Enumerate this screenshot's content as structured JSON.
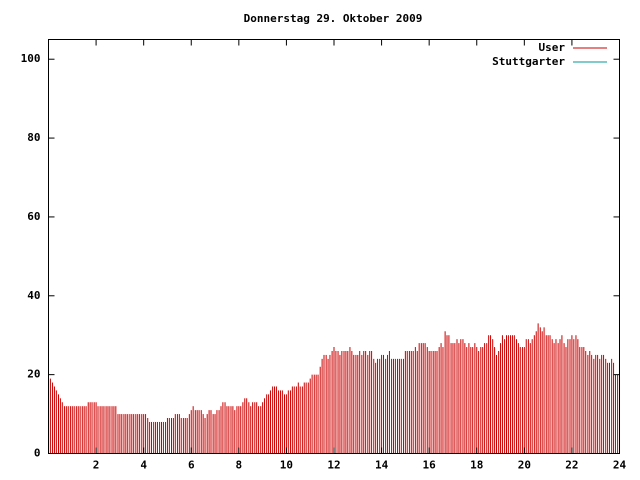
{
  "chart_data": {
    "type": "impulse",
    "title": "Donnerstag 29. Oktober 2009",
    "xlim": [
      0,
      24
    ],
    "xticks": [
      2,
      4,
      6,
      8,
      10,
      12,
      14,
      16,
      18,
      20,
      22,
      24
    ],
    "ylim": [
      0,
      105
    ],
    "yticks": [
      0,
      20,
      40,
      60,
      80,
      100
    ],
    "grid": false,
    "legend": "top-right",
    "x": [
      0,
      0.08,
      0.17,
      0.25,
      0.33,
      0.42,
      0.5,
      0.58,
      0.67,
      0.75,
      0.83,
      0.92,
      1,
      1.08,
      1.17,
      1.25,
      1.33,
      1.42,
      1.5,
      1.58,
      1.67,
      1.75,
      1.83,
      1.92,
      2,
      2.08,
      2.17,
      2.25,
      2.33,
      2.42,
      2.5,
      2.58,
      2.67,
      2.75,
      2.83,
      2.92,
      3,
      3.08,
      3.17,
      3.25,
      3.33,
      3.42,
      3.5,
      3.58,
      3.67,
      3.75,
      3.83,
      3.92,
      4,
      4.08,
      4.17,
      4.25,
      4.33,
      4.42,
      4.5,
      4.58,
      4.67,
      4.75,
      4.83,
      4.92,
      5,
      5.08,
      5.17,
      5.25,
      5.33,
      5.42,
      5.5,
      5.58,
      5.67,
      5.75,
      5.83,
      5.92,
      6,
      6.08,
      6.17,
      6.25,
      6.33,
      6.42,
      6.5,
      6.58,
      6.67,
      6.75,
      6.83,
      6.92,
      7,
      7.08,
      7.17,
      7.25,
      7.33,
      7.42,
      7.5,
      7.58,
      7.67,
      7.75,
      7.83,
      7.92,
      8,
      8.08,
      8.17,
      8.25,
      8.33,
      8.42,
      8.5,
      8.58,
      8.67,
      8.75,
      8.83,
      8.92,
      9,
      9.08,
      9.17,
      9.25,
      9.33,
      9.42,
      9.5,
      9.58,
      9.67,
      9.75,
      9.83,
      9.92,
      10,
      10.08,
      10.17,
      10.25,
      10.33,
      10.42,
      10.5,
      10.58,
      10.67,
      10.75,
      10.83,
      10.92,
      11,
      11.08,
      11.17,
      11.25,
      11.33,
      11.42,
      11.5,
      11.58,
      11.67,
      11.75,
      11.83,
      11.92,
      12,
      12.08,
      12.17,
      12.25,
      12.33,
      12.42,
      12.5,
      12.58,
      12.67,
      12.75,
      12.83,
      12.92,
      13,
      13.08,
      13.17,
      13.25,
      13.33,
      13.42,
      13.5,
      13.58,
      13.67,
      13.75,
      13.83,
      13.92,
      14,
      14.08,
      14.17,
      14.25,
      14.33,
      14.42,
      14.5,
      14.58,
      14.67,
      14.75,
      14.83,
      14.92,
      15,
      15.08,
      15.17,
      15.25,
      15.33,
      15.42,
      15.5,
      15.58,
      15.67,
      15.75,
      15.83,
      15.92,
      16,
      16.08,
      16.17,
      16.25,
      16.33,
      16.42,
      16.5,
      16.58,
      16.67,
      16.75,
      16.83,
      16.92,
      17,
      17.08,
      17.17,
      17.25,
      17.33,
      17.42,
      17.5,
      17.58,
      17.67,
      17.75,
      17.83,
      17.92,
      18,
      18.08,
      18.17,
      18.25,
      18.33,
      18.42,
      18.5,
      18.58,
      18.67,
      18.75,
      18.83,
      18.92,
      19,
      19.08,
      19.17,
      19.25,
      19.33,
      19.42,
      19.5,
      19.58,
      19.67,
      19.75,
      19.83,
      19.92,
      20,
      20.08,
      20.17,
      20.25,
      20.33,
      20.42,
      20.5,
      20.58,
      20.67,
      20.75,
      20.83,
      20.92,
      21,
      21.08,
      21.17,
      21.25,
      21.33,
      21.42,
      21.5,
      21.58,
      21.67,
      21.75,
      21.83,
      21.92,
      22,
      22.08,
      22.17,
      22.25,
      22.33,
      22.42,
      22.5,
      22.58,
      22.67,
      22.75,
      22.83,
      22.92,
      23,
      23.08,
      23.17,
      23.25,
      23.33,
      23.42,
      23.5,
      23.58,
      23.67,
      23.75,
      23.83,
      23.92
    ],
    "series": [
      {
        "name": "User",
        "color": "#cc0000",
        "values": [
          21,
          19,
          18,
          17,
          16,
          15,
          14,
          13,
          12,
          12,
          12,
          12,
          12,
          12,
          12,
          12,
          12,
          12,
          12,
          12,
          13,
          13,
          13,
          13,
          13,
          12,
          12,
          12,
          12,
          12,
          12,
          12,
          12,
          12,
          12,
          10,
          10,
          10,
          10,
          10,
          10,
          10,
          10,
          10,
          10,
          10,
          10,
          10,
          10,
          10,
          9,
          8,
          8,
          8,
          8,
          8,
          8,
          8,
          8,
          8,
          9,
          9,
          9,
          9,
          10,
          10,
          10,
          9,
          9,
          9,
          9,
          10,
          11,
          12,
          11,
          11,
          11,
          11,
          10,
          9,
          10,
          11,
          11,
          10,
          10,
          11,
          11,
          12,
          13,
          13,
          12,
          12,
          12,
          12,
          11,
          12,
          12,
          12,
          13,
          14,
          14,
          13,
          12,
          13,
          13,
          13,
          12,
          12,
          13,
          14,
          15,
          15,
          16,
          17,
          17,
          17,
          16,
          16,
          16,
          15,
          15,
          16,
          16,
          17,
          17,
          17,
          18,
          17,
          17,
          18,
          18,
          18,
          19,
          20,
          20,
          20,
          20,
          22,
          24,
          25,
          25,
          24,
          25,
          26,
          27,
          26,
          26,
          25,
          26,
          26,
          26,
          26,
          27,
          26,
          25,
          25,
          25,
          26,
          25,
          26,
          26,
          25,
          26,
          26,
          24,
          23,
          24,
          24,
          25,
          25,
          24,
          25,
          26,
          24,
          24,
          24,
          24,
          24,
          24,
          24,
          26,
          26,
          26,
          26,
          26,
          27,
          26,
          28,
          28,
          28,
          28,
          27,
          26,
          26,
          26,
          26,
          26,
          27,
          28,
          27,
          31,
          30,
          30,
          28,
          28,
          28,
          29,
          28,
          29,
          29,
          28,
          27,
          28,
          27,
          27,
          28,
          27,
          26,
          27,
          27,
          28,
          28,
          30,
          30,
          29,
          27,
          25,
          26,
          28,
          30,
          29,
          30,
          30,
          30,
          30,
          30,
          29,
          28,
          27,
          27,
          27,
          29,
          29,
          28,
          29,
          30,
          31,
          33,
          32,
          31,
          32,
          30,
          30,
          30,
          29,
          28,
          29,
          28,
          29,
          30,
          28,
          27,
          29,
          29,
          30,
          29,
          30,
          29,
          27,
          27,
          27,
          26,
          25,
          26,
          25,
          24,
          25,
          25,
          24,
          25,
          25,
          24,
          23,
          23,
          24,
          23,
          20,
          20
        ]
      },
      {
        "name": "Stuttgarter",
        "color": "#009999",
        "values": [
          null,
          null,
          null,
          null,
          null,
          null,
          null,
          null,
          null,
          null,
          null,
          null,
          null,
          null,
          null,
          null,
          null,
          null,
          null,
          null,
          null,
          null,
          null,
          null,
          null,
          null,
          null,
          null,
          null,
          null,
          null,
          null,
          null,
          null,
          null,
          null,
          null,
          null,
          null,
          null,
          null,
          null,
          null,
          null,
          null,
          null,
          null,
          null,
          null,
          null,
          null,
          null,
          null,
          null,
          null,
          null,
          null,
          null,
          null,
          null,
          null,
          null,
          null,
          null,
          null,
          null,
          null,
          null,
          null,
          null,
          null,
          null,
          null,
          null,
          null,
          null,
          null,
          null,
          null,
          null,
          null,
          null,
          null,
          null,
          null,
          null,
          null,
          null,
          null,
          null,
          null,
          null,
          null,
          null,
          null,
          null,
          null,
          null,
          null,
          null,
          null,
          null,
          null,
          null,
          null,
          null,
          null,
          null,
          null,
          null,
          null,
          null,
          null,
          null,
          null,
          null,
          null,
          null,
          null,
          null,
          null,
          null,
          null,
          null,
          null,
          null,
          null,
          null,
          null,
          null,
          null,
          null,
          null,
          null,
          null,
          null,
          null,
          null,
          null,
          null,
          null,
          null,
          null,
          null,
          null,
          null,
          null,
          null,
          null,
          null,
          null,
          null,
          null,
          null,
          null,
          null,
          null,
          null,
          null,
          null,
          null,
          null,
          null,
          null,
          null,
          null,
          null,
          null,
          null,
          null,
          null,
          null,
          null,
          null,
          null,
          null,
          null,
          null,
          null,
          null,
          null,
          null,
          null,
          null,
          null,
          null,
          null,
          null,
          null,
          null,
          null,
          null,
          null,
          null,
          null,
          null,
          null,
          null,
          null,
          null,
          null,
          null,
          null,
          null,
          null,
          null,
          null,
          null,
          null,
          null,
          null,
          null,
          null,
          null,
          null,
          null,
          null,
          null,
          null,
          null,
          null,
          null,
          null,
          null,
          null,
          null,
          null,
          null,
          null,
          null,
          null,
          null,
          null,
          null,
          null,
          null,
          null,
          null,
          null,
          null,
          null,
          null,
          null,
          null,
          null,
          null,
          null,
          null,
          null,
          null,
          null,
          null,
          null,
          null,
          null,
          null,
          null,
          null,
          null,
          null,
          null,
          null,
          null,
          null,
          null,
          null,
          null,
          null,
          null,
          null,
          null,
          null,
          null,
          null,
          null,
          null,
          null,
          null,
          null,
          null,
          null,
          null,
          null,
          null,
          null,
          null,
          null,
          null
        ]
      }
    ]
  }
}
